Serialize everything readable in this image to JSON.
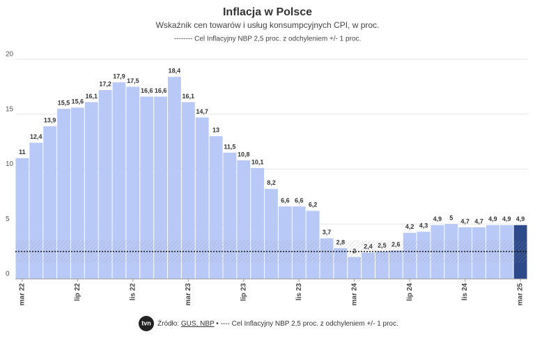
{
  "chart_data": {
    "type": "bar",
    "title": "Inflacja w Polsce",
    "subtitle": "Wskaźnik cen towarów i usług konsumpcyjnych CPI, w proc.",
    "note": "-------- Cel Inflacyjny NBP 2,5 proc. z odchyleniem +/- 1 proc.",
    "source_prefix": "Źródło: ",
    "source_link": "GUS, NBP",
    "source_suffix": " • ---- Cel Inflacyjny NBP 2,5 proc. z odchyleniem +/- 1 proc.",
    "logo": "tvn",
    "categories": [
      "mar 22",
      null,
      null,
      null,
      "lip 22",
      null,
      null,
      null,
      "lis 22",
      null,
      null,
      null,
      "mar 23",
      null,
      null,
      null,
      "lip 23",
      null,
      null,
      null,
      "lis 23",
      null,
      null,
      null,
      "mar 24",
      null,
      null,
      null,
      "lip 24",
      null,
      null,
      null,
      "lis 24",
      null,
      null,
      null,
      "mar 25"
    ],
    "values": [
      11,
      12.4,
      13.9,
      15.5,
      15.6,
      16.1,
      17.2,
      17.9,
      17.5,
      16.6,
      16.6,
      18.4,
      16.1,
      14.7,
      13,
      11.5,
      10.8,
      10.1,
      8.2,
      6.6,
      6.6,
      6.2,
      3.7,
      2.8,
      2,
      2.4,
      2.5,
      2.6,
      4.2,
      4.3,
      4.9,
      5,
      4.7,
      4.7,
      4.9,
      4.9,
      4.9
    ],
    "value_labels": [
      "11",
      "12,4",
      "13,9",
      "15,5",
      "15,6",
      "16,1",
      "17,2",
      "17,9",
      "17,5",
      "16,6",
      "16,6",
      "18,4",
      "16,1",
      "14,7",
      "13",
      "11,5",
      "10,8",
      "10,1",
      "8,2",
      "6,6",
      "6,6",
      "6,2",
      "3,7",
      "2,8",
      "2",
      "2,4",
      "2,5",
      "2,6",
      "4,2",
      "4,3",
      "4,9",
      "5",
      "4,7",
      "4,7",
      "4,9",
      "4,9",
      "4,9"
    ],
    "colors": [
      "#b9c9f7",
      "#b9c9f7",
      "#b9c9f7",
      "#b9c9f7",
      "#b9c9f7",
      "#b9c9f7",
      "#b9c9f7",
      "#b9c9f7",
      "#b9c9f7",
      "#b9c9f7",
      "#b9c9f7",
      "#b9c9f7",
      "#b9c9f7",
      "#b9c9f7",
      "#b9c9f7",
      "#b9c9f7",
      "#b9c9f7",
      "#b9c9f7",
      "#b9c9f7",
      "#b9c9f7",
      "#b9c9f7",
      "#b9c9f7",
      "#b9c9f7",
      "#b9c9f7",
      "#b9c9f7",
      "#b9c9f7",
      "#b9c9f7",
      "#b9c9f7",
      "#b9c9f7",
      "#b9c9f7",
      "#b9c9f7",
      "#b9c9f7",
      "#b9c9f7",
      "#b9c9f7",
      "#b9c9f7",
      "#b9c9f7",
      "#2d4a8a"
    ],
    "ylim": [
      0,
      20
    ],
    "yticks": [
      0,
      5,
      10,
      15,
      20
    ],
    "grid": true,
    "target": 2.5,
    "target_band": [
      1.5,
      3.5
    ]
  }
}
